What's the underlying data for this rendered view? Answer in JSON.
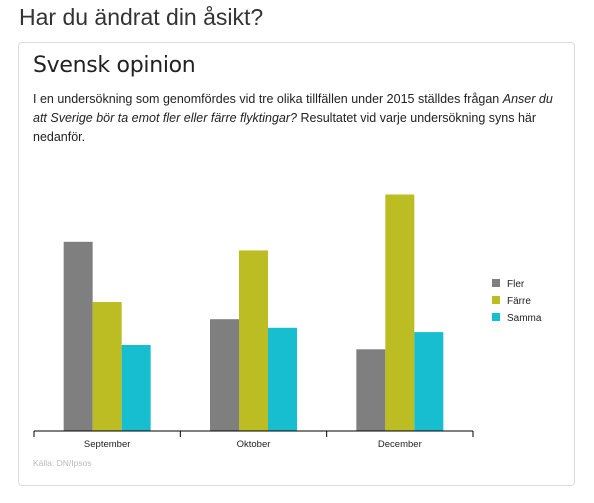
{
  "page": {
    "heading": "Har du ändrat din åsikt?"
  },
  "card": {
    "title": "Svensk opinion",
    "description_before": "I en undersökning som genomfördes vid tre olika tillfällen under 2015 ställdes frågan ",
    "description_question": "Anser du att Sverige bör ta emot fler eller färre flyktingar?",
    "description_after": " Resultatet vid varje undersökning syns här nedanför.",
    "source": "Källa: DN/Ipsos"
  },
  "chart_data": {
    "type": "bar",
    "title": "",
    "xlabel": "",
    "ylabel": "",
    "categories": [
      "September",
      "Oktober",
      "December"
    ],
    "series": [
      {
        "name": "Fler",
        "color": "#7f7f7f",
        "values": [
          44,
          26,
          19
        ]
      },
      {
        "name": "Färre",
        "color": "#bcbd22",
        "values": [
          30,
          42,
          55
        ]
      },
      {
        "name": "Samma",
        "color": "#17becf",
        "values": [
          20,
          24,
          23
        ]
      }
    ],
    "ylim": [
      0,
      60
    ],
    "grid": false,
    "legend": "right"
  }
}
